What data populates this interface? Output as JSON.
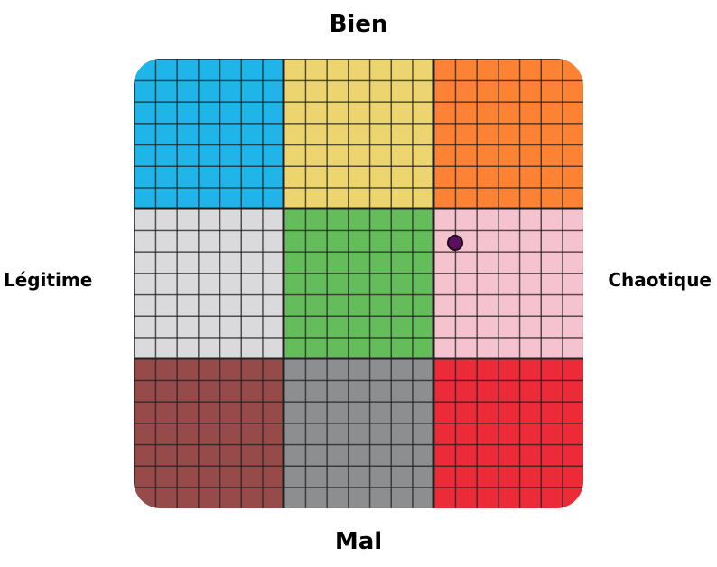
{
  "axes": {
    "top": "Bien",
    "bottom": "Mal",
    "left": "Légitime",
    "right": "Chaotique"
  },
  "cells": [
    {
      "name": "lawful-good",
      "color": "#1fb5e8"
    },
    {
      "name": "neutral-good",
      "color": "#ecd56f"
    },
    {
      "name": "chaotic-good",
      "color": "#fd8233"
    },
    {
      "name": "lawful-neutral",
      "color": "#dadadc"
    },
    {
      "name": "true-neutral",
      "color": "#64bd5a"
    },
    {
      "name": "chaotic-neutral",
      "color": "#f5c3cf"
    },
    {
      "name": "lawful-evil",
      "color": "#974a4a"
    },
    {
      "name": "neutral-evil",
      "color": "#8c8e8f"
    },
    {
      "name": "chaotic-evil",
      "color": "#ed2a38"
    }
  ],
  "marker": {
    "lawful_to_chaotic": 0.43,
    "evil_to_good": 0.18,
    "range": [
      -1,
      1
    ],
    "color": "#5c0f5c"
  }
}
